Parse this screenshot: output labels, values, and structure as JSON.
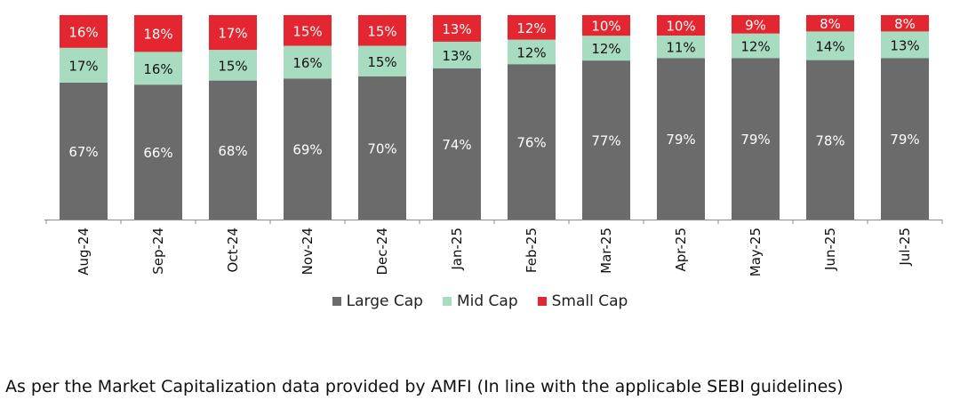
{
  "chart_data": {
    "type": "bar",
    "stacked": true,
    "categories": [
      "Aug-24",
      "Sep-24",
      "Oct-24",
      "Nov-24",
      "Dec-24",
      "Jan-25",
      "Feb-25",
      "Mar-25",
      "Apr-25",
      "May-25",
      "Jun-25",
      "Jul-25"
    ],
    "series": [
      {
        "name": "Large Cap",
        "color": "#6b6b6b",
        "values": [
          67,
          66,
          68,
          69,
          70,
          74,
          76,
          77,
          79,
          79,
          78,
          79
        ]
      },
      {
        "name": "Mid Cap",
        "color": "#a8dcc0",
        "values": [
          17,
          16,
          15,
          16,
          15,
          13,
          12,
          12,
          11,
          12,
          14,
          13
        ]
      },
      {
        "name": "Small Cap",
        "color": "#e3262f",
        "values": [
          16,
          18,
          17,
          15,
          15,
          13,
          12,
          10,
          10,
          9,
          8,
          8
        ]
      }
    ],
    "value_suffix": "%",
    "legend_position": "bottom"
  },
  "footnote": "As per the Market Capitalization data provided by AMFI (In line with the applicable SEBI guidelines)"
}
